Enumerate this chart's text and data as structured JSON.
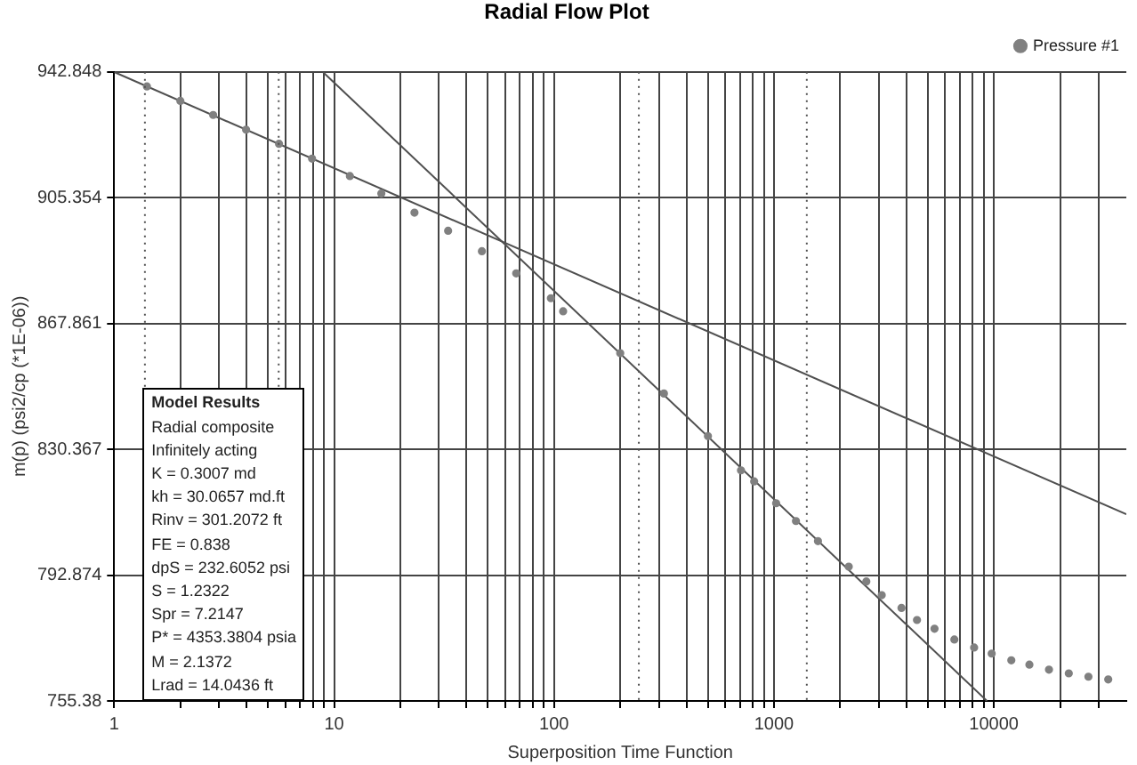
{
  "chart_data": {
    "type": "scatter",
    "title": "Radial Flow Plot",
    "xlabel": "Superposition Time Function",
    "ylabel": "m(p) (psi2/cp (*1E-06))",
    "log": "x",
    "grid": true,
    "legend": "top right",
    "xlim": [
      1,
      40000
    ],
    "ylim": [
      755.38,
      942.848
    ],
    "xticks": [
      1,
      {
        "value": 2,
        "label": null
      },
      {
        "value": 3,
        "label": null
      },
      {
        "value": 4,
        "label": null
      },
      {
        "value": 5,
        "label": null
      },
      {
        "value": 6,
        "label": null
      },
      {
        "value": 7,
        "label": null
      },
      {
        "value": 8,
        "label": null
      },
      {
        "value": 9,
        "label": null
      },
      10,
      {
        "value": 20,
        "label": null
      },
      {
        "value": 30,
        "label": null
      },
      {
        "value": 40,
        "label": null
      },
      {
        "value": 50,
        "label": null
      },
      {
        "value": 60,
        "label": null
      },
      {
        "value": 70,
        "label": null
      },
      {
        "value": 80,
        "label": null
      },
      {
        "value": 90,
        "label": null
      },
      100,
      {
        "value": 200,
        "label": null
      },
      {
        "value": 300,
        "label": null
      },
      {
        "value": 400,
        "label": null
      },
      {
        "value": 500,
        "label": null
      },
      {
        "value": 600,
        "label": null
      },
      {
        "value": 700,
        "label": null
      },
      {
        "value": 800,
        "label": null
      },
      {
        "value": 900,
        "label": null
      },
      1000,
      {
        "value": 2000,
        "label": null
      },
      {
        "value": 3000,
        "label": null
      },
      {
        "value": 4000,
        "label": null
      },
      {
        "value": 5000,
        "label": null
      },
      {
        "value": 6000,
        "label": null
      },
      {
        "value": 7000,
        "label": null
      },
      {
        "value": 8000,
        "label": null
      },
      {
        "value": 9000,
        "label": null
      },
      10000,
      {
        "value": 20000,
        "label": null
      },
      {
        "value": 30000,
        "label": null
      }
    ],
    "yticks": [
      755.38,
      792.874,
      830.367,
      867.861,
      905.354,
      942.848
    ],
    "series": [
      {
        "name": "Pressure #1",
        "marker": "circle",
        "color": "#808080",
        "x": [
          1.41,
          2.0,
          2.82,
          3.98,
          5.62,
          7.94,
          11.8,
          16.4,
          23.2,
          33.0,
          47.0,
          67.3,
          96.8,
          110,
          200,
          316,
          501,
          708,
          813,
          1023,
          1259,
          1585,
          2188,
          2630,
          3090,
          3800,
          4470,
          5370,
          6610,
          8130,
          9770,
          12000,
          14500,
          17800,
          21900,
          26900,
          33100
        ],
        "values": [
          938.5,
          934.2,
          930.0,
          925.6,
          921.4,
          917.0,
          911.8,
          906.6,
          900.9,
          895.5,
          889.4,
          882.8,
          875.4,
          871.5,
          859,
          847,
          834.3,
          824.1,
          820.8,
          814.3,
          809,
          803,
          795.4,
          791.0,
          786.9,
          783.1,
          779.5,
          776.9,
          773.7,
          771.3,
          769.5,
          767.5,
          766.2,
          764.7,
          763.6,
          762.6,
          761.8
        ]
      },
      {
        "type": "line",
        "marker": "none",
        "line_style": "solid",
        "color": "#505050",
        "x": [
          1,
          40000
        ],
        "values": [
          942.8,
          811
        ]
      },
      {
        "type": "line",
        "marker": "none",
        "line_style": "solid",
        "color": "#505050",
        "x": [
          8.9,
          9300
        ],
        "values": [
          942.8,
          755.4
        ]
      }
    ],
    "ref_lines": [
      {
        "axis": "x",
        "value": 1.38,
        "color": "#505050",
        "line_style": "dotted"
      },
      {
        "axis": "x",
        "value": 5.6,
        "color": "#505050",
        "line_style": "dotted"
      },
      {
        "axis": "x",
        "value": 243,
        "color": "#505050",
        "line_style": "dotted"
      },
      {
        "axis": "x",
        "value": 1410,
        "color": "#505050",
        "line_style": "dotted"
      }
    ],
    "annotations": [
      "Model Results",
      "Radial composite",
      "Infinitely acting",
      "K = 0.3007 md",
      "kh = 30.0657 md.ft",
      "Rinv = 301.2072 ft",
      "FE = 0.838",
      "dpS = 232.6052 psi",
      "S = 1.2322",
      "Spr = 7.2147",
      "P* = 4353.3804 psia",
      "M = 2.1372",
      "Lrad = 14.0436 ft"
    ]
  }
}
